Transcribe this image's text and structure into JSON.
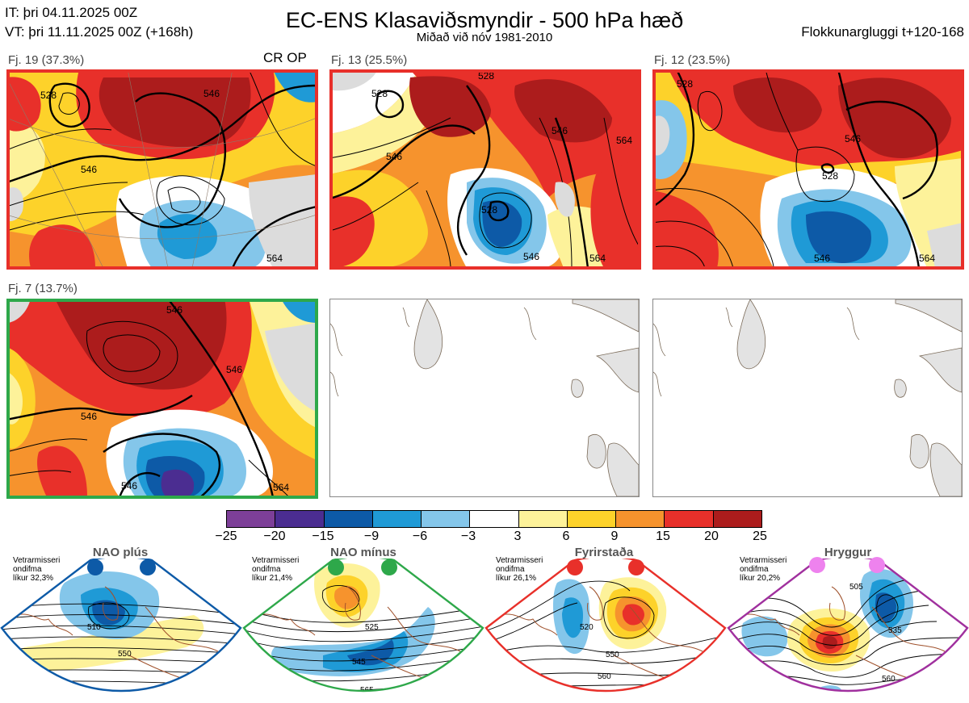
{
  "header": {
    "it": "IT: þri 04.11.2025 00Z",
    "vt": "VT: þri 11.11.2025 00Z  (+168h)",
    "title": "EC-ENS Klasaviðsmyndir - 500 hPa hæð",
    "subtitle": "Miðað við nóv 1981-2010",
    "window": "Flokkunargluggi t+120-168"
  },
  "panels": [
    {
      "label": "Fj. 19 (37.3%)",
      "tag": "CR OP",
      "border": "#e8302a",
      "contours": [
        "528",
        "546",
        "546",
        "564"
      ]
    },
    {
      "label": "Fj. 13 (25.5%)",
      "border": "#e8302a",
      "contours": [
        "528",
        "546",
        "546",
        "564",
        "528",
        "546",
        "564",
        "528"
      ]
    },
    {
      "label": "Fj. 12 (23.5%)",
      "border": "#e8302a",
      "contours": [
        "528",
        "546",
        "528",
        "546",
        "564"
      ]
    },
    {
      "label": "Fj. 7 (13.7%)",
      "border": "#2ea84a",
      "contours": [
        "546",
        "546",
        "546",
        "546",
        "564"
      ]
    }
  ],
  "colorbar": {
    "ticks": [
      "−25",
      "−20",
      "−15",
      "−9",
      "−6",
      "−3",
      "3",
      "6",
      "9",
      "15",
      "20",
      "25"
    ],
    "colors": [
      "#7d3f98",
      "#4b2d91",
      "#0d5aa7",
      "#1f9ad6",
      "#84c6ea",
      "#ffffff",
      "#fdf29a",
      "#fdd22a",
      "#f6932d",
      "#e8302a",
      "#ac1c1c"
    ]
  },
  "regimes": [
    {
      "name": "NAO plús",
      "info": [
        "Vetrarmisseri",
        "ondifma",
        "líkur 32,3%"
      ],
      "color": "#0d5aa7",
      "contours": [
        "510",
        "550"
      ]
    },
    {
      "name": "NAO mínus",
      "info": [
        "Vetrarmisseri",
        "ondifma",
        "líkur 21,4%"
      ],
      "color": "#2ea84a",
      "contours": [
        "525",
        "545",
        "565"
      ]
    },
    {
      "name": "Fyrirstaða",
      "info": [
        "Vetrarmisseri",
        "ondifma",
        "líkur 26,1%"
      ],
      "color": "#e8302a",
      "contours": [
        "520",
        "550",
        "560"
      ]
    },
    {
      "name": "Hryggur",
      "info": [
        "Vetrarmisseri",
        "ondifma",
        "líkur 20,2%"
      ],
      "color": "#d040c0",
      "dot_color": "#ee82ee",
      "contours": [
        "505",
        "535",
        "560"
      ]
    }
  ]
}
